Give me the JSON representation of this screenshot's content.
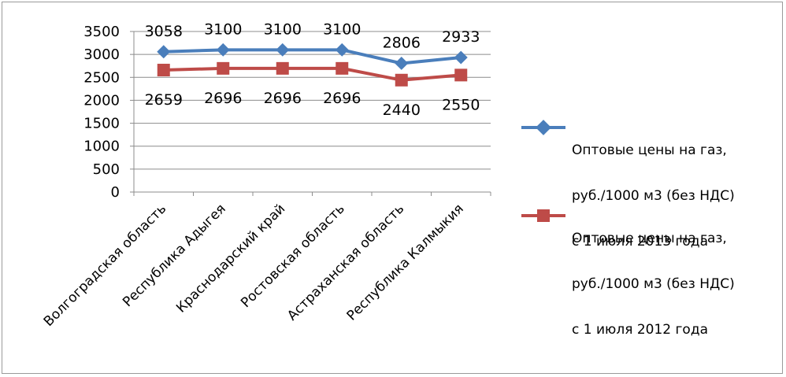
{
  "chart_data": {
    "type": "line",
    "categories": [
      "Волгоградская область",
      "Республика Адыгея",
      "Краснодарский край",
      "Ростовская область",
      "Астраханская область",
      "Республика Калмыкия"
    ],
    "series": [
      {
        "name": "Оптовые цены на газ, руб./1000 м3 (без НДС) с 1 июля 2013 года",
        "color": "#4a7ebb",
        "marker": "diamond",
        "values": [
          3058,
          3100,
          3100,
          3100,
          2806,
          2933
        ],
        "labels": [
          "3058",
          "3100",
          "3100",
          "3100",
          "2806",
          "2933"
        ]
      },
      {
        "name": "Оптовые цены на газ, руб./1000 м3 (без НДС) с 1 июля 2012 года",
        "color": "#be4b48",
        "marker": "square",
        "values": [
          2659,
          2696,
          2696,
          2696,
          2440,
          2550
        ],
        "labels": [
          "2659",
          "2696",
          "2696",
          "2696",
          "2440",
          "2550"
        ]
      }
    ],
    "ylim": [
      0,
      3500
    ],
    "yticks": [
      "0",
      "500",
      "1000",
      "1500",
      "2000",
      "2500",
      "3000",
      "3500"
    ],
    "grid": true,
    "legend_position": "right",
    "title": "",
    "xlabel": "",
    "ylabel": ""
  },
  "legend": {
    "items": [
      {
        "line1": "Оптовые цены на газ,",
        "line2": "руб./1000 м3 (без НДС)",
        "line3": "с 1 июля  2013 года"
      },
      {
        "line1": "Оптовые цены на газ,",
        "line2": "руб./1000 м3 (без НДС)",
        "line3": "с 1 июля  2012 года"
      }
    ]
  }
}
